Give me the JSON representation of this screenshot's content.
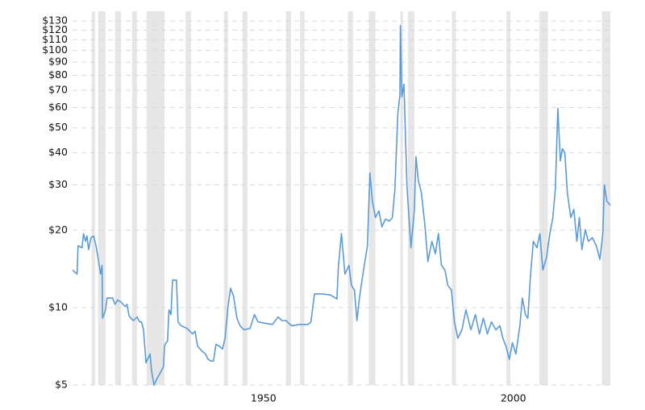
{
  "chart_data": {
    "type": "line",
    "log_scale": true,
    "grid": true,
    "color": "#5b9bd5",
    "band_color": "#e6e6e6",
    "xlim": [
      1911.8,
      2019.4
    ],
    "xticks": [
      1950,
      2000
    ],
    "ylim": [
      5,
      142
    ],
    "yticks": [
      {
        "value": 5,
        "label": "$5"
      },
      {
        "value": 10,
        "label": "$10"
      },
      {
        "value": 20,
        "label": "$20"
      },
      {
        "value": 30,
        "label": "$30"
      },
      {
        "value": 40,
        "label": "$40"
      },
      {
        "value": 50,
        "label": "$50"
      },
      {
        "value": 60,
        "label": "$60"
      },
      {
        "value": 70,
        "label": "$70"
      },
      {
        "value": 80,
        "label": "$80"
      },
      {
        "value": 90,
        "label": "$90"
      },
      {
        "value": 100,
        "label": "$100"
      },
      {
        "value": 110,
        "label": "$110"
      },
      {
        "value": 120,
        "label": "$120"
      },
      {
        "value": 130,
        "label": "$130"
      }
    ],
    "shaded_ranges": [
      [
        1915.6,
        1916.3
      ],
      [
        1916.9,
        1918.4
      ],
      [
        1920.3,
        1921.5
      ],
      [
        1923.7,
        1924.7
      ],
      [
        1926.6,
        1930.2
      ],
      [
        1934.4,
        1935.5
      ],
      [
        1942.1,
        1942.9
      ],
      [
        1945.8,
        1946.8
      ],
      [
        1954.5,
        1955.5
      ],
      [
        1957.3,
        1958.2
      ],
      [
        1966.9,
        1967.9
      ],
      [
        1971.1,
        1972.4
      ],
      [
        1977.4,
        1977.9
      ],
      [
        1978.9,
        1980.2
      ],
      [
        1987.7,
        1988.5
      ],
      [
        1998.6,
        1999.4
      ],
      [
        2005.2,
        2006.9
      ],
      [
        2017.7,
        2019.4
      ]
    ],
    "x": [
      1911.8,
      1912.7,
      1912.9,
      1913.7,
      1914.0,
      1914.4,
      1914.7,
      1915.0,
      1915.5,
      1916.0,
      1916.5,
      1916.9,
      1917.4,
      1917.7,
      1917.8,
      1918.4,
      1918.7,
      1919.8,
      1920.3,
      1920.8,
      1921.5,
      1922.3,
      1922.7,
      1923.1,
      1923.5,
      1924.0,
      1924.7,
      1925.2,
      1925.6,
      1926.0,
      1926.5,
      1927.3,
      1927.6,
      1928.1,
      1928.7,
      1929.4,
      1930.0,
      1930.2,
      1930.5,
      1930.8,
      1931.1,
      1931.5,
      1931.8,
      1932.6,
      1932.9,
      1933.5,
      1934.7,
      1935.8,
      1936.3,
      1936.8,
      1937.6,
      1938.4,
      1938.9,
      1939.5,
      1940.0,
      1940.5,
      1941.1,
      1941.8,
      1942.3,
      1942.9,
      1943.4,
      1944.0,
      1944.7,
      1945.3,
      1946.1,
      1947.3,
      1948.2,
      1948.9,
      1950.2,
      1951.8,
      1952.9,
      1953.7,
      1954.5,
      1955.6,
      1957.3,
      1958.9,
      1959.5,
      1960.2,
      1961.8,
      1963.4,
      1964.7,
      1965.0,
      1965.6,
      1966.3,
      1967.1,
      1967.6,
      1968.2,
      1968.7,
      1969.2,
      1969.8,
      1970.8,
      1971.3,
      1971.8,
      1972.4,
      1973.1,
      1973.7,
      1974.4,
      1975.2,
      1975.8,
      1976.3,
      1976.9,
      1977.3,
      1977.4,
      1977.7,
      1978.1,
      1978.4,
      1978.7,
      1979.0,
      1979.5,
      1980.2,
      1980.5,
      1981.0,
      1981.6,
      1982.3,
      1982.9,
      1983.7,
      1984.4,
      1985.0,
      1985.6,
      1986.3,
      1986.9,
      1987.6,
      1988.2,
      1988.9,
      1989.7,
      1990.5,
      1991.5,
      1992.4,
      1993.2,
      1994.0,
      1994.8,
      1995.6,
      1996.5,
      1997.3,
      1997.9,
      1998.5,
      1999.2,
      1999.8,
      2000.5,
      2001.3,
      2001.8,
      2002.4,
      2002.9,
      2003.4,
      2004.0,
      2004.7,
      2005.3,
      2005.9,
      2006.6,
      2007.3,
      2007.9,
      2008.4,
      2008.9,
      2009.4,
      2009.8,
      2010.3,
      2010.8,
      2011.5,
      2012.1,
      2012.7,
      2013.2,
      2013.7,
      2014.4,
      2015.0,
      2015.8,
      2016.6,
      2017.3,
      2017.9,
      2018.2,
      2018.7,
      2019.4
    ],
    "values": [
      14.0,
      13.5,
      17.4,
      17.1,
      19.4,
      18.1,
      19.0,
      16.8,
      18.7,
      19.0,
      17.4,
      15.6,
      13.5,
      14.6,
      9.1,
      9.8,
      10.9,
      10.9,
      10.3,
      10.7,
      10.5,
      10.1,
      10.3,
      9.3,
      9.1,
      8.9,
      9.2,
      8.8,
      8.8,
      8.2,
      6.1,
      6.6,
      5.7,
      5.0,
      5.3,
      5.6,
      5.9,
      7.1,
      7.3,
      7.4,
      9.8,
      9.4,
      12.8,
      12.8,
      8.8,
      8.5,
      8.3,
      7.9,
      8.1,
      7.1,
      6.8,
      6.6,
      6.3,
      6.2,
      6.2,
      7.2,
      7.1,
      6.9,
      7.6,
      10.1,
      11.9,
      11.1,
      9.1,
      8.5,
      8.2,
      8.3,
      9.4,
      8.8,
      8.7,
      8.6,
      9.2,
      8.9,
      8.9,
      8.5,
      8.6,
      8.6,
      8.8,
      11.3,
      11.3,
      11.2,
      10.8,
      14.6,
      19.4,
      13.5,
      14.6,
      12.2,
      11.7,
      8.9,
      10.9,
      13.1,
      17.4,
      33.4,
      25.9,
      22.4,
      23.8,
      20.6,
      22.1,
      21.7,
      22.4,
      28.9,
      57.0,
      67.0,
      125.0,
      66.0,
      73.9,
      48.0,
      30.0,
      24.1,
      17.1,
      24.1,
      38.6,
      31.0,
      27.9,
      20.9,
      15.1,
      18.1,
      16.2,
      19.4,
      14.6,
      14.0,
      12.2,
      11.7,
      8.8,
      7.6,
      8.2,
      9.8,
      8.2,
      9.4,
      7.9,
      9.1,
      7.9,
      8.8,
      8.2,
      8.5,
      7.6,
      7.1,
      6.3,
      7.3,
      6.6,
      8.5,
      10.9,
      9.4,
      9.1,
      13.1,
      18.1,
      17.1,
      19.4,
      14.0,
      15.6,
      19.4,
      22.4,
      28.9,
      59.5,
      37.2,
      41.5,
      40.0,
      27.9,
      22.4,
      24.1,
      18.1,
      22.4,
      16.8,
      20.1,
      18.1,
      18.7,
      17.4,
      15.4,
      19.4,
      30.0,
      25.9,
      25.0
    ]
  }
}
